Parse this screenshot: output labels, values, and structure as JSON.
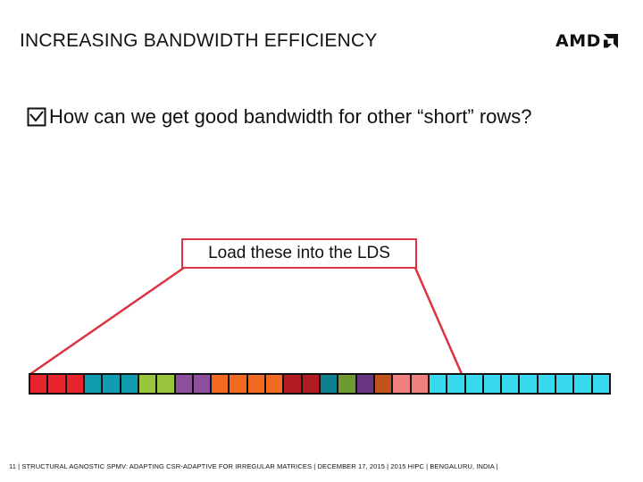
{
  "slide": {
    "title": "INCREASING BANDWIDTH EFFICIENCY",
    "logo_text": "AMD",
    "bullet_text": "How can we get good bandwidth for other “short” rows?",
    "callout_text": "Load these into the LDS",
    "footer_text": "11  |  STRUCTURAL AGNOSTIC SPMV: ADAPTING CSR-ADAPTIVE FOR IRREGULAR MATRICES  |  DECEMBER 17, 2015  |  2015 HIPC  |  BENGALURU, INDIA  |"
  },
  "cells": [
    "#e8232e",
    "#e8232e",
    "#e8232e",
    "#119db0",
    "#119db0",
    "#119db0",
    "#9bc53d",
    "#9bc53d",
    "#8e4e9e",
    "#8e4e9e",
    "#f26a21",
    "#f26a21",
    "#f26a21",
    "#f26a21",
    "#b31b22",
    "#b31b22",
    "#0e7f8f",
    "#6e9a32",
    "#6a3782",
    "#c3521d",
    "#f08080",
    "#f08080",
    "#38d8ee",
    "#38d8ee",
    "#38d8ee",
    "#38d8ee",
    "#38d8ee",
    "#38d8ee",
    "#38d8ee",
    "#38d8ee",
    "#38d8ee",
    "#38d8ee"
  ],
  "colors": {
    "callout_border": "#d9343f",
    "connector": "#d9343f"
  }
}
